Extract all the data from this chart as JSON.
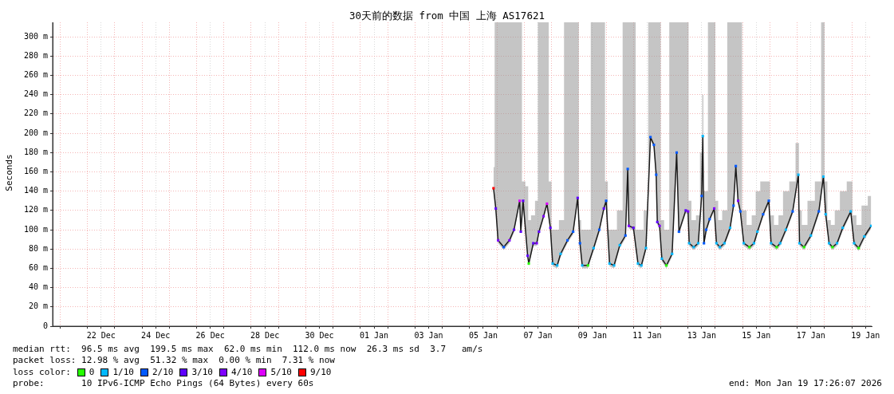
{
  "chart_data": {
    "type": "line",
    "title": "30天前的数据 from 中国 上海 AS17621",
    "ylabel": "Seconds",
    "xlim": [
      "2025-12-20T17:26",
      "2026-01-19T17:26"
    ],
    "xticks": [
      {
        "value": "2025-12-21T00:00",
        "label": null
      },
      {
        "value": "2025-12-22T00:00",
        "label": null
      },
      {
        "value": "2025-12-22T12:00",
        "label": "22 Dec"
      },
      {
        "value": "2025-12-23T00:00",
        "label": null
      },
      {
        "value": "2025-12-24T00:00",
        "label": null
      },
      {
        "value": "2025-12-24T12:00",
        "label": "24 Dec"
      },
      {
        "value": "2025-12-25T00:00",
        "label": null
      },
      {
        "value": "2025-12-26T00:00",
        "label": null
      },
      {
        "value": "2025-12-26T12:00",
        "label": "26 Dec"
      },
      {
        "value": "2025-12-27T00:00",
        "label": null
      },
      {
        "value": "2025-12-28T00:00",
        "label": null
      },
      {
        "value": "2025-12-28T12:00",
        "label": "28 Dec"
      },
      {
        "value": "2025-12-29T00:00",
        "label": null
      },
      {
        "value": "2025-12-30T00:00",
        "label": null
      },
      {
        "value": "2025-12-30T12:00",
        "label": "30 Dec"
      },
      {
        "value": "2025-12-31T00:00",
        "label": null
      },
      {
        "value": "2026-01-01T00:00",
        "label": null
      },
      {
        "value": "2026-01-01T12:00",
        "label": "01 Jan"
      },
      {
        "value": "2026-01-02T00:00",
        "label": null
      },
      {
        "value": "2026-01-03T00:00",
        "label": null
      },
      {
        "value": "2026-01-03T12:00",
        "label": "03 Jan"
      },
      {
        "value": "2026-01-04T00:00",
        "label": null
      },
      {
        "value": "2026-01-05T00:00",
        "label": null
      },
      {
        "value": "2026-01-05T12:00",
        "label": "05 Jan"
      },
      {
        "value": "2026-01-06T00:00",
        "label": null
      },
      {
        "value": "2026-01-07T00:00",
        "label": null
      },
      {
        "value": "2026-01-07T12:00",
        "label": "07 Jan"
      },
      {
        "value": "2026-01-08T00:00",
        "label": null
      },
      {
        "value": "2026-01-09T00:00",
        "label": null
      },
      {
        "value": "2026-01-09T12:00",
        "label": "09 Jan"
      },
      {
        "value": "2026-01-10T00:00",
        "label": null
      },
      {
        "value": "2026-01-11T00:00",
        "label": null
      },
      {
        "value": "2026-01-11T12:00",
        "label": "11 Jan"
      },
      {
        "value": "2026-01-12T00:00",
        "label": null
      },
      {
        "value": "2026-01-13T00:00",
        "label": null
      },
      {
        "value": "2026-01-13T12:00",
        "label": "13 Jan"
      },
      {
        "value": "2026-01-14T00:00",
        "label": null
      },
      {
        "value": "2026-01-15T00:00",
        "label": null
      },
      {
        "value": "2026-01-15T12:00",
        "label": "15 Jan"
      },
      {
        "value": "2026-01-16T00:00",
        "label": null
      },
      {
        "value": "2026-01-17T00:00",
        "label": null
      },
      {
        "value": "2026-01-17T12:00",
        "label": "17 Jan"
      },
      {
        "value": "2026-01-18T00:00",
        "label": null
      },
      {
        "value": "2026-01-19T00:00",
        "label": null
      },
      {
        "value": "2026-01-19T12:00",
        "label": "19 Jan"
      }
    ],
    "ylim": [
      0,
      315
    ],
    "yticks": [
      0,
      {
        "value": 20,
        "label": "20 m"
      },
      {
        "value": 40,
        "label": "40 m"
      },
      {
        "value": 60,
        "label": "60 m"
      },
      {
        "value": 80,
        "label": "80 m"
      },
      {
        "value": 100,
        "label": "100 m"
      },
      {
        "value": 120,
        "label": "120 m"
      },
      {
        "value": 140,
        "label": "140 m"
      },
      {
        "value": 160,
        "label": "160 m"
      },
      {
        "value": 180,
        "label": "180 m"
      },
      {
        "value": 200,
        "label": "200 m"
      },
      {
        "value": 220,
        "label": "220 m"
      },
      {
        "value": 240,
        "label": "240 m"
      },
      {
        "value": 260,
        "label": "260 m"
      },
      {
        "value": 280,
        "label": "280 m"
      },
      {
        "value": 300,
        "label": "300 m"
      }
    ],
    "grid": true,
    "legend": "bottom",
    "legend_title": "loss color:",
    "x": [
      "2026-01-05T21:00",
      "2026-01-05T23:00",
      "2026-01-06T01:00",
      "2026-01-06T06:00",
      "2026-01-06T11:00",
      "2026-01-06T15:00",
      "2026-01-06T20:00",
      "2026-01-06T21:00",
      "2026-01-06T23:00",
      "2026-01-07T03:00",
      "2026-01-07T04:00",
      "2026-01-07T08:00",
      "2026-01-07T11:00",
      "2026-01-07T13:00",
      "2026-01-07T17:00",
      "2026-01-07T20:00",
      "2026-01-07T23:00",
      "2026-01-08T01:00",
      "2026-01-08T05:00",
      "2026-01-08T08:00",
      "2026-01-08T14:00",
      "2026-01-08T19:00",
      "2026-01-08T23:00",
      "2026-01-09T01:00",
      "2026-01-09T03:00",
      "2026-01-09T08:00",
      "2026-01-09T13:00",
      "2026-01-09T18:00",
      "2026-01-09T22:00",
      "2026-01-10T00:00",
      "2026-01-10T03:00",
      "2026-01-10T07:00",
      "2026-01-10T12:00",
      "2026-01-10T17:00",
      "2026-01-10T19:00",
      "2026-01-10T20:00",
      "2026-01-11T00:00",
      "2026-01-11T04:00",
      "2026-01-11T07:00",
      "2026-01-11T11:00",
      "2026-01-11T15:00",
      "2026-01-11T18:00",
      "2026-01-11T20:00",
      "2026-01-11T21:00",
      "2026-01-11T23:00",
      "2026-01-12T01:00",
      "2026-01-12T05:00",
      "2026-01-12T10:00",
      "2026-01-12T14:00",
      "2026-01-12T16:00",
      "2026-01-12T22:00",
      "2026-01-13T00:00",
      "2026-01-13T01:00",
      "2026-01-13T05:00",
      "2026-01-13T09:00",
      "2026-01-13T12:00",
      "2026-01-13T13:00",
      "2026-01-13T14:00",
      "2026-01-13T16:00",
      "2026-01-13T19:00",
      "2026-01-13T23:00",
      "2026-01-14T01:00",
      "2026-01-14T04:00",
      "2026-01-14T08:00",
      "2026-01-14T13:00",
      "2026-01-14T16:00",
      "2026-01-14T18:00",
      "2026-01-14T20:00",
      "2026-01-14T22:00",
      "2026-01-15T01:00",
      "2026-01-15T06:00",
      "2026-01-15T10:00",
      "2026-01-15T13:00",
      "2026-01-15T18:00",
      "2026-01-15T23:00",
      "2026-01-16T01:00",
      "2026-01-16T06:00",
      "2026-01-16T09:00",
      "2026-01-16T14:00",
      "2026-01-16T20:00",
      "2026-01-17T01:00",
      "2026-01-17T02:00",
      "2026-01-17T06:00",
      "2026-01-17T12:00",
      "2026-01-17T19:00",
      "2026-01-17T23:00",
      "2026-01-18T01:00",
      "2026-01-18T04:00",
      "2026-01-18T07:00",
      "2026-01-18T11:00",
      "2026-01-18T16:00",
      "2026-01-18T23:00",
      "2026-01-19T02:00",
      "2026-01-19T06:00",
      "2026-01-19T11:00",
      "2026-01-19T17:00"
    ],
    "series": [
      {
        "color": "#1a1a1a",
        "marker": "none",
        "values": [
          143,
          122,
          89,
          82,
          89,
          100,
          130,
          98,
          130,
          73,
          65,
          86,
          86,
          98,
          114,
          127,
          102,
          65,
          63,
          75,
          89,
          98,
          133,
          86,
          63,
          63,
          81,
          100,
          122,
          130,
          65,
          63,
          84,
          94,
          163,
          104,
          102,
          65,
          63,
          81,
          196,
          188,
          157,
          108,
          104,
          70,
          63,
          75,
          180,
          98,
          120,
          119,
          86,
          82,
          86,
          135,
          197,
          86,
          100,
          111,
          122,
          86,
          82,
          86,
          102,
          125,
          166,
          130,
          119,
          86,
          82,
          86,
          98,
          116,
          130,
          86,
          82,
          86,
          100,
          119,
          157,
          86,
          82,
          94,
          119,
          155,
          116,
          86,
          82,
          86,
          102,
          119,
          86,
          81,
          93,
          104
        ],
        "lower": [
          140,
          119,
          86,
          79,
          86,
          97,
          127,
          95,
          127,
          70,
          62,
          83,
          83,
          95,
          111,
          124,
          99,
          62,
          60,
          72,
          86,
          95,
          130,
          83,
          60,
          60,
          78,
          97,
          119,
          127,
          62,
          60,
          81,
          91,
          160,
          101,
          99,
          62,
          60,
          78,
          193,
          185,
          154,
          105,
          101,
          67,
          60,
          72,
          177,
          95,
          117,
          116,
          83,
          79,
          83,
          132,
          194,
          83,
          97,
          108,
          119,
          83,
          79,
          83,
          99,
          122,
          163,
          127,
          116,
          83,
          79,
          83,
          95,
          113,
          127,
          83,
          79,
          83,
          97,
          116,
          154,
          83,
          79,
          91,
          116,
          152,
          113,
          83,
          79,
          83,
          99,
          116,
          83,
          78,
          90,
          101
        ],
        "upper": [
          165,
          315,
          315,
          315,
          315,
          315,
          315,
          315,
          150,
          145,
          110,
          115,
          130,
          315,
          315,
          315,
          150,
          100,
          100,
          110,
          315,
          315,
          315,
          110,
          100,
          100,
          315,
          315,
          315,
          150,
          100,
          100,
          120,
          315,
          315,
          315,
          315,
          100,
          100,
          120,
          315,
          315,
          315,
          315,
          315,
          110,
          100,
          315,
          315,
          315,
          315,
          315,
          130,
          110,
          115,
          180,
          240,
          140,
          140,
          315,
          315,
          130,
          110,
          120,
          315,
          315,
          315,
          315,
          315,
          120,
          105,
          115,
          140,
          150,
          150,
          115,
          105,
          115,
          140,
          150,
          190,
          120,
          105,
          130,
          150,
          315,
          150,
          110,
          105,
          120,
          140,
          150,
          115,
          105,
          125,
          135
        ]
      },
      {
        "name": "0",
        "color": "#26ff00",
        "type": "scatter",
        "marker": "square",
        "x": [
          "2026-01-07T04:00",
          "2026-01-09T08:00",
          "2026-01-12T05:00",
          "2026-01-15T06:00",
          "2026-01-16T06:00",
          "2026-01-17T06:00",
          "2026-01-18T07:00",
          "2026-01-19T06:00"
        ],
        "values": [
          65,
          63,
          63,
          82,
          82,
          82,
          82,
          81
        ]
      },
      {
        "name": "1/10",
        "color": "#00b8ff",
        "type": "scatter",
        "marker": "square",
        "x": [
          "2026-01-08T01:00",
          "2026-01-08T05:00",
          "2026-01-08T08:00",
          "2026-01-09T03:00",
          "2026-01-09T13:00",
          "2026-01-10T03:00",
          "2026-01-10T07:00",
          "2026-01-10T12:00",
          "2026-01-11T04:00",
          "2026-01-11T07:00",
          "2026-01-11T11:00",
          "2026-01-12T01:00",
          "2026-01-12T10:00",
          "2026-01-13T01:00",
          "2026-01-13T05:00",
          "2026-01-13T09:00",
          "2026-01-13T13:00",
          "2026-01-14T01:00",
          "2026-01-14T04:00",
          "2026-01-14T08:00",
          "2026-01-14T13:00",
          "2026-01-15T01:00",
          "2026-01-15T10:00",
          "2026-01-15T13:00",
          "2026-01-16T01:00",
          "2026-01-16T09:00",
          "2026-01-16T14:00",
          "2026-01-17T01:00",
          "2026-01-17T02:00",
          "2026-01-17T12:00",
          "2026-01-17T23:00",
          "2026-01-18T01:00",
          "2026-01-18T04:00",
          "2026-01-18T11:00",
          "2026-01-18T16:00",
          "2026-01-18T23:00",
          "2026-01-19T02:00",
          "2026-01-19T11:00",
          "2026-01-19T17:00"
        ],
        "values": [
          65,
          63,
          75,
          63,
          81,
          65,
          63,
          84,
          65,
          63,
          81,
          70,
          75,
          86,
          82,
          86,
          197,
          86,
          82,
          86,
          102,
          86,
          86,
          98,
          86,
          86,
          100,
          157,
          86,
          94,
          155,
          116,
          86,
          86,
          102,
          119,
          86,
          93,
          104
        ]
      },
      {
        "name": "2/10",
        "color": "#0059ff",
        "type": "scatter",
        "marker": "square",
        "x": [
          "2026-01-06T06:00",
          "2026-01-08T14:00",
          "2026-01-08T19:00",
          "2026-01-09T01:00",
          "2026-01-09T18:00",
          "2026-01-10T00:00",
          "2026-01-10T17:00",
          "2026-01-10T19:00",
          "2026-01-11T15:00",
          "2026-01-11T18:00",
          "2026-01-11T20:00",
          "2026-01-12T14:00",
          "2026-01-12T16:00",
          "2026-01-13T12:00",
          "2026-01-13T14:00",
          "2026-01-13T16:00",
          "2026-01-13T19:00",
          "2026-01-14T16:00",
          "2026-01-14T18:00",
          "2026-01-14T22:00",
          "2026-01-15T18:00",
          "2026-01-15T23:00",
          "2026-01-16T20:00",
          "2026-01-17T19:00"
        ],
        "values": [
          82,
          89,
          98,
          86,
          100,
          130,
          94,
          163,
          196,
          188,
          157,
          180,
          98,
          135,
          86,
          100,
          111,
          125,
          166,
          119,
          116,
          130,
          119,
          119
        ]
      },
      {
        "name": "3/10",
        "color": "#5e00ff",
        "type": "scatter",
        "marker": "square",
        "x": [
          "2026-01-05T23:00",
          "2026-01-06T15:00",
          "2026-01-06T21:00",
          "2026-01-06T23:00",
          "2026-01-07T03:00",
          "2026-01-07T08:00",
          "2026-01-07T13:00",
          "2026-01-07T23:00",
          "2026-01-08T23:00",
          "2026-01-09T22:00",
          "2026-01-11T00:00",
          "2026-01-11T21:00",
          "2026-01-12T22:00"
        ],
        "values": [
          122,
          100,
          98,
          130,
          73,
          86,
          98,
          102,
          133,
          122,
          102,
          108,
          120
        ]
      },
      {
        "name": "4/10",
        "color": "#7e00ff",
        "type": "scatter",
        "marker": "square",
        "x": [
          "2026-01-06T01:00",
          "2026-01-06T11:00",
          "2026-01-07T11:00",
          "2026-01-07T17:00",
          "2026-01-10T20:00",
          "2026-01-11T23:00",
          "2026-01-13T00:00",
          "2026-01-13T23:00",
          "2026-01-14T20:00"
        ],
        "values": [
          89,
          89,
          86,
          114,
          104,
          104,
          119,
          122,
          130
        ]
      },
      {
        "name": "5/10",
        "color": "#dd00ff",
        "type": "scatter",
        "marker": "square",
        "x": [
          "2026-01-06T20:00",
          "2026-01-07T20:00"
        ],
        "values": [
          130,
          127
        ]
      },
      {
        "name": "9/10",
        "color": "#ff0000",
        "type": "scatter",
        "marker": "square",
        "x": [
          "2026-01-05T21:00"
        ],
        "values": [
          143
        ]
      }
    ],
    "annotations": [
      "median rtt:  96.5 ms avg  199.5 ms max  62.0 ms min  112.0 ms now  26.3 ms sd  3.7   am/s",
      "packet loss: 12.98 % avg  51.32 % max  0.00 % min  7.31 % now",
      "probe:       10 IPv6-ICMP Echo Pings (64 Bytes) every 60s",
      "end: Mon Jan 19 17:26:07 2026"
    ]
  }
}
